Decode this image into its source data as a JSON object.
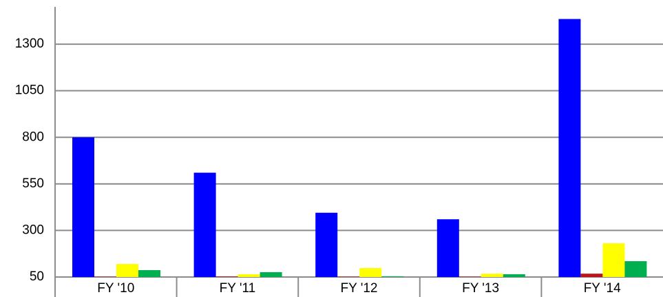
{
  "chart_data": {
    "type": "bar",
    "categories": [
      "FY '10",
      "FY '11",
      "FY '12",
      "FY '13",
      "FY '14"
    ],
    "series": [
      {
        "color": "#0000ff",
        "values": [
          800,
          610,
          395,
          360,
          1435
        ]
      },
      {
        "color": "#c0141c",
        "values": [
          52,
          53,
          52,
          52,
          68
        ]
      },
      {
        "color": "#ffff00",
        "values": [
          120,
          65,
          98,
          68,
          231
        ]
      },
      {
        "color": "#00b050",
        "values": [
          87,
          76,
          54,
          65,
          135
        ]
      }
    ],
    "ylim": [
      50,
      1500
    ],
    "yticks": [
      50,
      300,
      550,
      800,
      1050,
      1300
    ],
    "grid": true
  }
}
